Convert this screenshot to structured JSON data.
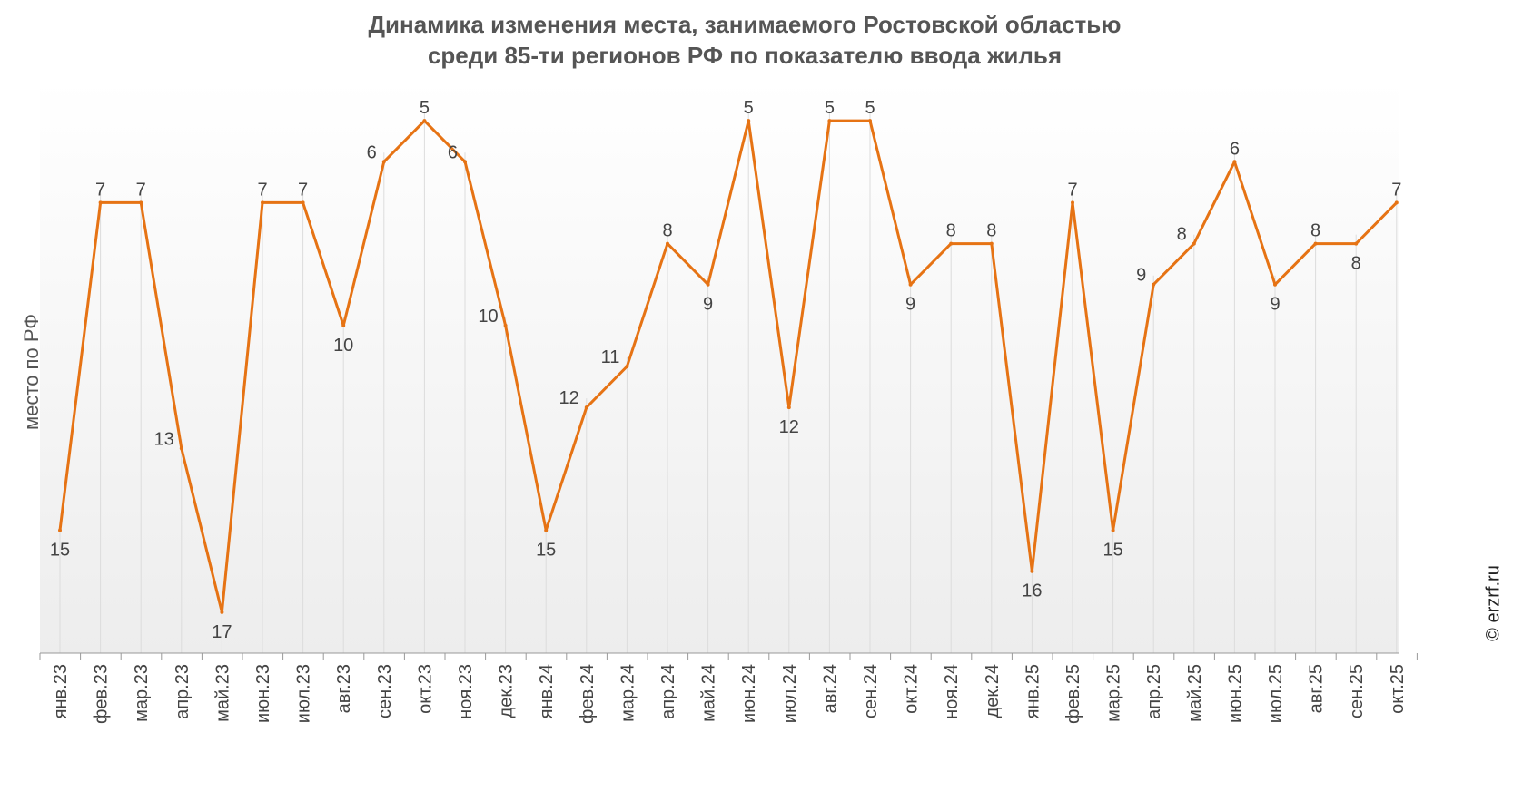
{
  "chart_data": {
    "type": "line",
    "title_lines": [
      "Динамика изменения места, занимаемого Ростовской областью",
      "среди 85-ти регионов РФ по показателю ввода жилья"
    ],
    "xlabel": "",
    "ylabel": "место по РФ",
    "y_reversed": true,
    "ylim": [
      4,
      18
    ],
    "grid": "vertical",
    "categories": [
      "янв.23",
      "фев.23",
      "мар.23",
      "апр.23",
      "май.23",
      "июн.23",
      "июл.23",
      "авг.23",
      "сен.23",
      "окт.23",
      "ноя.23",
      "дек.23",
      "янв.24",
      "фев.24",
      "мар.24",
      "апр.24",
      "май.24",
      "июн.24",
      "июл.24",
      "авг.24",
      "сен.24",
      "окт.24",
      "ноя.24",
      "дек.24",
      "янв.25",
      "фев.25",
      "мар.25",
      "апр.25",
      "май.25",
      "июн.25",
      "июл.25",
      "авг.25",
      "сен.25",
      "окт.25"
    ],
    "series": [
      {
        "values": [
          15,
          7,
          7,
          13,
          17,
          7,
          7,
          10,
          6,
          5,
          6,
          10,
          15,
          12,
          11,
          8,
          9,
          5,
          12,
          5,
          5,
          9,
          8,
          8,
          16,
          7,
          15,
          9,
          8,
          6,
          9,
          8,
          8,
          7
        ],
        "color": "#E67314"
      }
    ],
    "credit": "© erzrf.ru"
  }
}
